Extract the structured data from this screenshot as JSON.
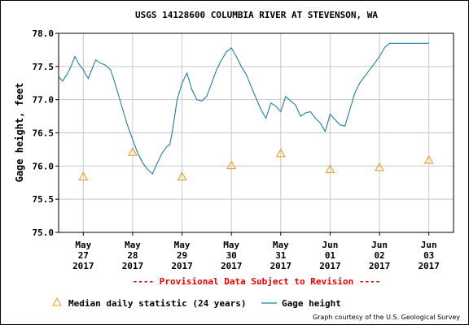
{
  "chart_data": {
    "type": "line",
    "title": "USGS 14128600 COLUMBIA RIVER AT STEVENSON, WA",
    "ylabel": "Gage height, feet",
    "ylim": [
      75.0,
      78.0
    ],
    "y_ticks": [
      "75.0",
      "75.5",
      "76.0",
      "76.5",
      "77.0",
      "77.5",
      "78.0"
    ],
    "x_tick_labels": [
      [
        "May",
        "27",
        "2017"
      ],
      [
        "May",
        "28",
        "2017"
      ],
      [
        "May",
        "29",
        "2017"
      ],
      [
        "May",
        "30",
        "2017"
      ],
      [
        "May",
        "31",
        "2017"
      ],
      [
        "Jun",
        "01",
        "2017"
      ],
      [
        "Jun",
        "02",
        "2017"
      ],
      [
        "Jun",
        "03",
        "2017"
      ]
    ],
    "grid": true,
    "provisional_note": "---- Provisional Data Subject to Revision ----",
    "credit": "Graph courtesy of the U.S. Geological Survey",
    "legend": [
      {
        "label": "Median daily statistic (24 years)",
        "marker": "triangle",
        "color": "#e6a020"
      },
      {
        "label": "Gage height",
        "marker": "line",
        "color": "#1f7fa5"
      }
    ],
    "series": [
      {
        "name": "Gage height",
        "color": "#1f7fa5",
        "x": [
          -0.5,
          -0.42,
          -0.33,
          -0.25,
          -0.17,
          -0.1,
          -0.05,
          0.0,
          0.05,
          0.1,
          0.17,
          0.25,
          0.35,
          0.45,
          0.55,
          0.62,
          0.7,
          0.8,
          0.9,
          1.0,
          1.1,
          1.2,
          1.3,
          1.4,
          1.5,
          1.6,
          1.7,
          1.75,
          1.8,
          1.85,
          1.9,
          2.0,
          2.1,
          2.2,
          2.3,
          2.4,
          2.5,
          2.6,
          2.7,
          2.8,
          2.9,
          3.0,
          3.1,
          3.2,
          3.3,
          3.4,
          3.5,
          3.6,
          3.7,
          3.8,
          3.9,
          4.0,
          4.1,
          4.2,
          4.3,
          4.4,
          4.5,
          4.6,
          4.7,
          4.8,
          4.9,
          5.0,
          5.1,
          5.2,
          5.3,
          5.4,
          5.5,
          5.6,
          5.7,
          5.8,
          5.9,
          6.0,
          6.1,
          6.2,
          6.3,
          6.4,
          6.5,
          6.6,
          6.7,
          6.8,
          6.9,
          7.0
        ],
        "values": [
          77.35,
          77.28,
          77.38,
          77.5,
          77.65,
          77.55,
          77.5,
          77.45,
          77.38,
          77.32,
          77.45,
          77.6,
          77.55,
          77.52,
          77.45,
          77.3,
          77.1,
          76.85,
          76.6,
          76.4,
          76.2,
          76.05,
          75.95,
          75.88,
          76.05,
          76.2,
          76.3,
          76.32,
          76.5,
          76.75,
          77.0,
          77.25,
          77.4,
          77.15,
          77.0,
          76.98,
          77.05,
          77.25,
          77.45,
          77.6,
          77.72,
          77.78,
          77.65,
          77.5,
          77.38,
          77.2,
          77.02,
          76.85,
          76.72,
          76.95,
          76.9,
          76.82,
          77.05,
          76.98,
          76.92,
          76.75,
          76.8,
          76.82,
          76.72,
          76.65,
          76.52,
          76.78,
          76.7,
          76.62,
          76.6,
          76.85,
          77.1,
          77.25,
          77.35,
          77.45,
          77.55,
          77.65,
          77.78,
          77.85,
          77.85,
          77.85,
          77.85,
          77.85,
          77.85,
          77.85,
          77.85,
          77.85
        ]
      },
      {
        "name": "Median daily statistic (24 years)",
        "color": "#e6a020",
        "x": [
          0,
          1,
          2,
          3,
          4,
          5,
          6,
          7
        ],
        "values": [
          75.84,
          76.21,
          75.84,
          76.01,
          76.19,
          75.95,
          75.98,
          76.09
        ]
      }
    ]
  }
}
